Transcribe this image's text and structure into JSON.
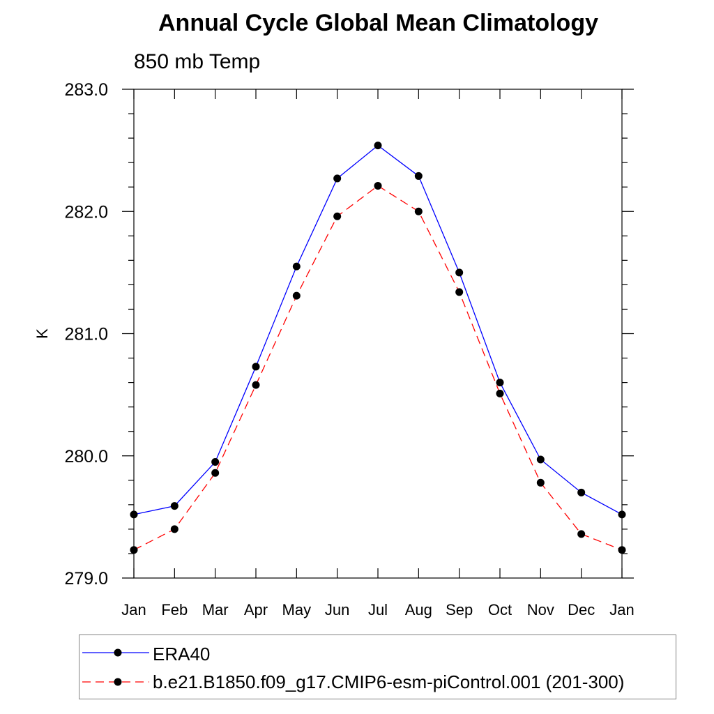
{
  "chart_data": {
    "type": "line",
    "title": "Annual Cycle Global Mean Climatology",
    "subtitle": "850 mb Temp",
    "xlabel": "",
    "ylabel": "K",
    "categories": [
      "Jan",
      "Feb",
      "Mar",
      "Apr",
      "May",
      "Jun",
      "Jul",
      "Aug",
      "Sep",
      "Oct",
      "Nov",
      "Dec",
      "Jan"
    ],
    "ylim": [
      279.0,
      283.0
    ],
    "yticks": [
      "279.0",
      "280.0",
      "281.0",
      "282.0",
      "283.0"
    ],
    "y_minor_step": 0.2,
    "grid": false,
    "legend_position": "bottom",
    "series": [
      {
        "name": "ERA40",
        "color": "#0000ff",
        "line_style": "solid",
        "marker": "filled-circle",
        "values": [
          279.52,
          279.59,
          279.95,
          280.73,
          281.55,
          282.27,
          282.54,
          282.29,
          281.5,
          280.6,
          279.97,
          279.7,
          279.52
        ]
      },
      {
        "name": "b.e21.B1850.f09_g17.CMIP6-esm-piControl.001 (201-300)",
        "color": "#ff0000",
        "line_style": "dashed",
        "marker": "filled-circle",
        "values": [
          279.23,
          279.4,
          279.86,
          280.58,
          281.31,
          281.96,
          282.21,
          282.0,
          281.34,
          280.51,
          279.78,
          279.36,
          279.23
        ]
      }
    ]
  }
}
